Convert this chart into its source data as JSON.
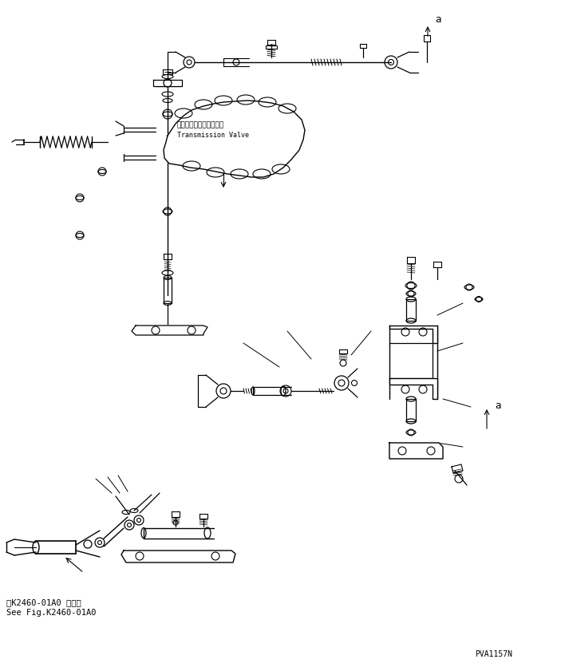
{
  "bg_color": "#ffffff",
  "line_color": "#000000",
  "fig_width": 7.03,
  "fig_height": 8.36,
  "dpi": 100,
  "bottom_text_line1": "第K2460-01A0 図参照",
  "bottom_text_line2": "See Fig.K2460-01A0",
  "part_number": "PVA1157N",
  "label_a_top": "a",
  "label_a_bottom": "a",
  "transmission_valve_jp": "トランスミションバルブ",
  "transmission_valve_en": "Transmission Valve"
}
